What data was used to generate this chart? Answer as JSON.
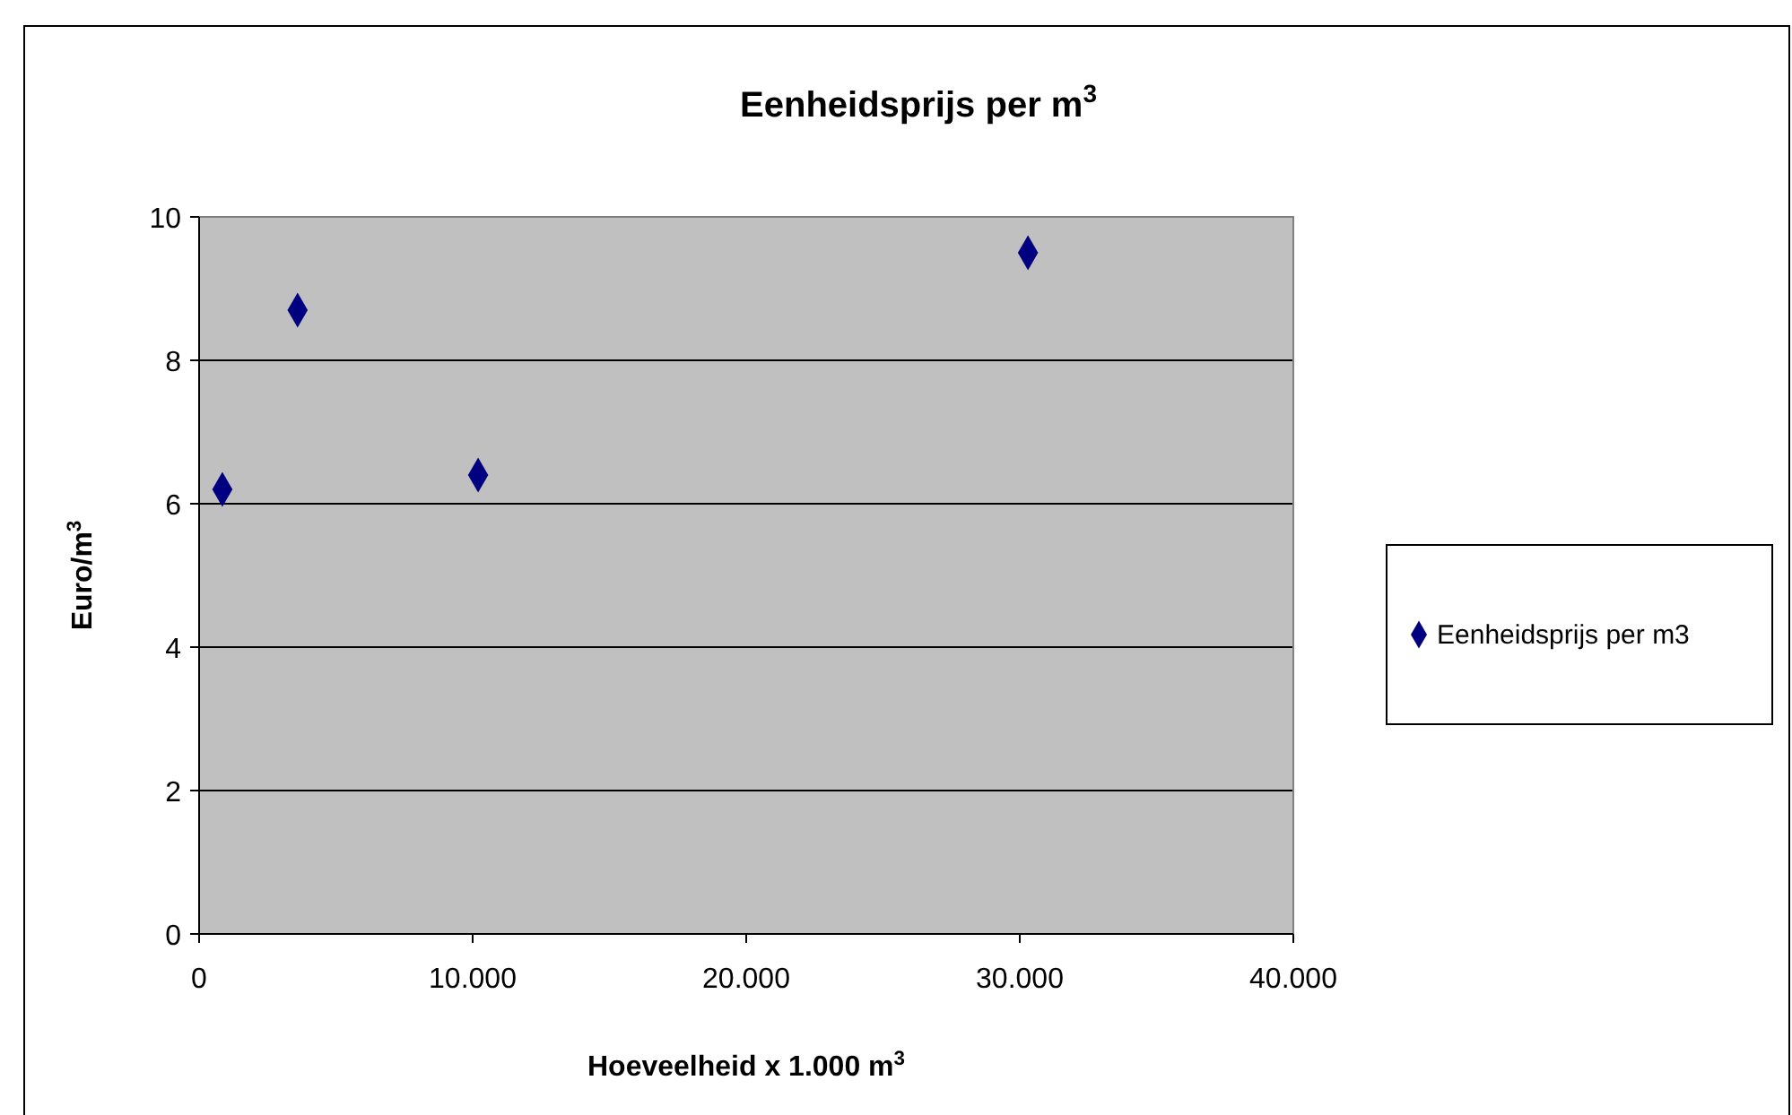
{
  "chart_data": {
    "type": "scatter",
    "title": "Eenheidsprijs per m$^{3}$",
    "xlabel": "Hoeveelheid x 1.000 m$^{3}$",
    "ylabel": "Euro/m$^{3}$",
    "x": [
      850,
      3600,
      10200,
      30300
    ],
    "series": [
      {
        "name": "Eenheidsprijs per m3",
        "color": "#000080",
        "values": [
          6.2,
          8.7,
          6.4,
          9.5
        ]
      }
    ],
    "xlim": [
      0,
      40000
    ],
    "xticks": [
      0,
      {
        "value": 10000,
        "label": "10.000"
      },
      {
        "value": 20000,
        "label": "20.000"
      },
      {
        "value": 30000,
        "label": "30.000"
      },
      {
        "value": 40000,
        "label": "40.000"
      }
    ],
    "ylim": [
      0,
      10
    ],
    "yticks": [
      0,
      2,
      4,
      6,
      8,
      10
    ],
    "grid": "y",
    "legend": "right",
    "marker": "diamond"
  }
}
